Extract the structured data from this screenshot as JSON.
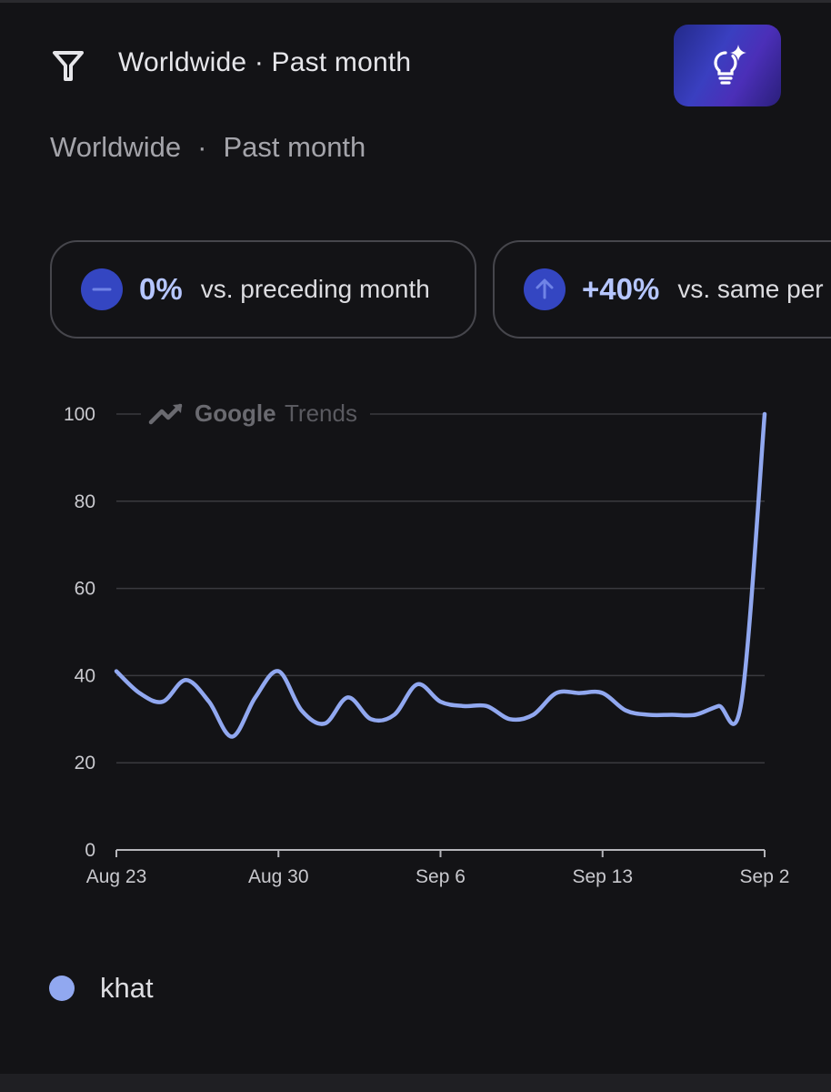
{
  "header": {
    "title": "Worldwide · Past month",
    "filter_icon": "filter-icon",
    "ai_icon": "lightbulb-sparkle-icon"
  },
  "subtitle": {
    "region": "Worldwide",
    "separator": "·",
    "period": "Past month"
  },
  "stats": [
    {
      "value": "0%",
      "label": "vs. preceding month",
      "icon": "minus-icon",
      "color": "#3446c2"
    },
    {
      "value": "+40%",
      "label": "vs. same per",
      "icon": "arrow-up-icon",
      "color": "#3446c2"
    }
  ],
  "watermark": {
    "brand": "Google",
    "product": "Trends",
    "icon": "trending-up-icon"
  },
  "chart_data": {
    "type": "line",
    "ylim": [
      0,
      100
    ],
    "y_ticks": [
      "0",
      "20",
      "40",
      "60",
      "80",
      "100"
    ],
    "x_ticks": [
      "Aug 23",
      "Aug 30",
      "Sep 6",
      "Sep 13",
      "Sep 2"
    ],
    "grid": true,
    "line_color": "#91a8f0",
    "series": [
      {
        "name": "khat",
        "x": [
          "Aug 23",
          "Aug 24",
          "Aug 25",
          "Aug 26",
          "Aug 27",
          "Aug 28",
          "Aug 29",
          "Aug 30",
          "Aug 31",
          "Sep 1",
          "Sep 2",
          "Sep 3",
          "Sep 4",
          "Sep 5",
          "Sep 6",
          "Sep 7",
          "Sep 8",
          "Sep 9",
          "Sep 10",
          "Sep 11",
          "Sep 12",
          "Sep 13",
          "Sep 14",
          "Sep 15",
          "Sep 16",
          "Sep 17",
          "Sep 18",
          "Sep 19",
          "Sep 20"
        ],
        "values": [
          41,
          36,
          34,
          39,
          34,
          26,
          35,
          41,
          32,
          29,
          35,
          30,
          31,
          38,
          34,
          33,
          33,
          30,
          31,
          36,
          36,
          36,
          32,
          31,
          31,
          31,
          33,
          34,
          100
        ]
      }
    ]
  },
  "legend": {
    "items": [
      {
        "label": "khat",
        "color": "#91a8f0"
      }
    ]
  }
}
